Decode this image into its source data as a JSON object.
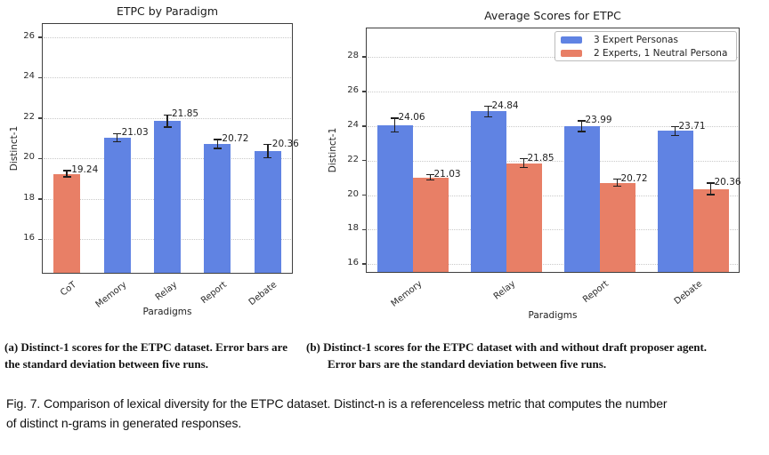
{
  "figure": {
    "captions": {
      "a": {
        "line1": "(a) Distinct-1 scores for the ETPC dataset. Error bars are",
        "line2": "the standard deviation between five runs."
      },
      "b": {
        "line1": "(b) Distinct-1 scores for the ETPC dataset with and without draft proposer agent.",
        "line2": "Error bars are the standard deviation between five runs."
      },
      "fig": {
        "line1": "Fig. 7.  Comparison of lexical diversity for the ETPC dataset. Distinct-n is a referenceless metric that computes the number",
        "line2": "of distinct n-grams in generated responses."
      }
    },
    "colors": {
      "blue": "#6083e3",
      "orange": "#e87f66",
      "error_bar": "#1f1f1f"
    }
  },
  "chart_data": [
    {
      "id": "chart-a",
      "type": "bar",
      "title": "ETPC by Paradigm",
      "xlabel": "Paradigms",
      "ylabel": "Distinct-1",
      "categories": [
        "CoT",
        "Memory",
        "Relay",
        "Report",
        "Debate"
      ],
      "series": [
        {
          "name": null,
          "values": [
            19.24,
            21.03,
            21.85,
            20.72,
            20.36
          ],
          "errors": [
            0.15,
            0.2,
            0.3,
            0.22,
            0.33
          ],
          "colors": [
            "#e87f66",
            "#6083e3",
            "#6083e3",
            "#6083e3",
            "#6083e3"
          ]
        }
      ],
      "value_labels": [
        "19.24",
        "21.03",
        "21.85",
        "20.72",
        "20.36"
      ],
      "ylim": [
        14.3,
        26.7
      ],
      "yticks": [
        16,
        18,
        20,
        22,
        24,
        26
      ],
      "grid": true,
      "legend_position": null
    },
    {
      "id": "chart-b",
      "type": "bar",
      "title": "Average Scores for ETPC",
      "xlabel": "Paradigms",
      "ylabel": "Distinct-1",
      "categories": [
        "Memory",
        "Relay",
        "Report",
        "Debate"
      ],
      "series": [
        {
          "name": "3 Expert Personas",
          "color": "#6083e3",
          "values": [
            24.06,
            24.84,
            23.99,
            23.71
          ],
          "errors": [
            0.4,
            0.3,
            0.3,
            0.25
          ]
        },
        {
          "name": "2 Experts, 1 Neutral Persona",
          "color": "#e87f66",
          "values": [
            21.03,
            21.85,
            20.72,
            20.36
          ],
          "errors": [
            0.15,
            0.25,
            0.2,
            0.33
          ]
        }
      ],
      "value_labels": [
        [
          "24.06",
          "24.84",
          "23.99",
          "23.71"
        ],
        [
          "21.03",
          "21.85",
          "20.72",
          "20.36"
        ]
      ],
      "ylim": [
        15.5,
        29.7
      ],
      "yticks": [
        16,
        18,
        20,
        22,
        24,
        26,
        28
      ],
      "grid": true,
      "legend_position": "upper right"
    }
  ]
}
